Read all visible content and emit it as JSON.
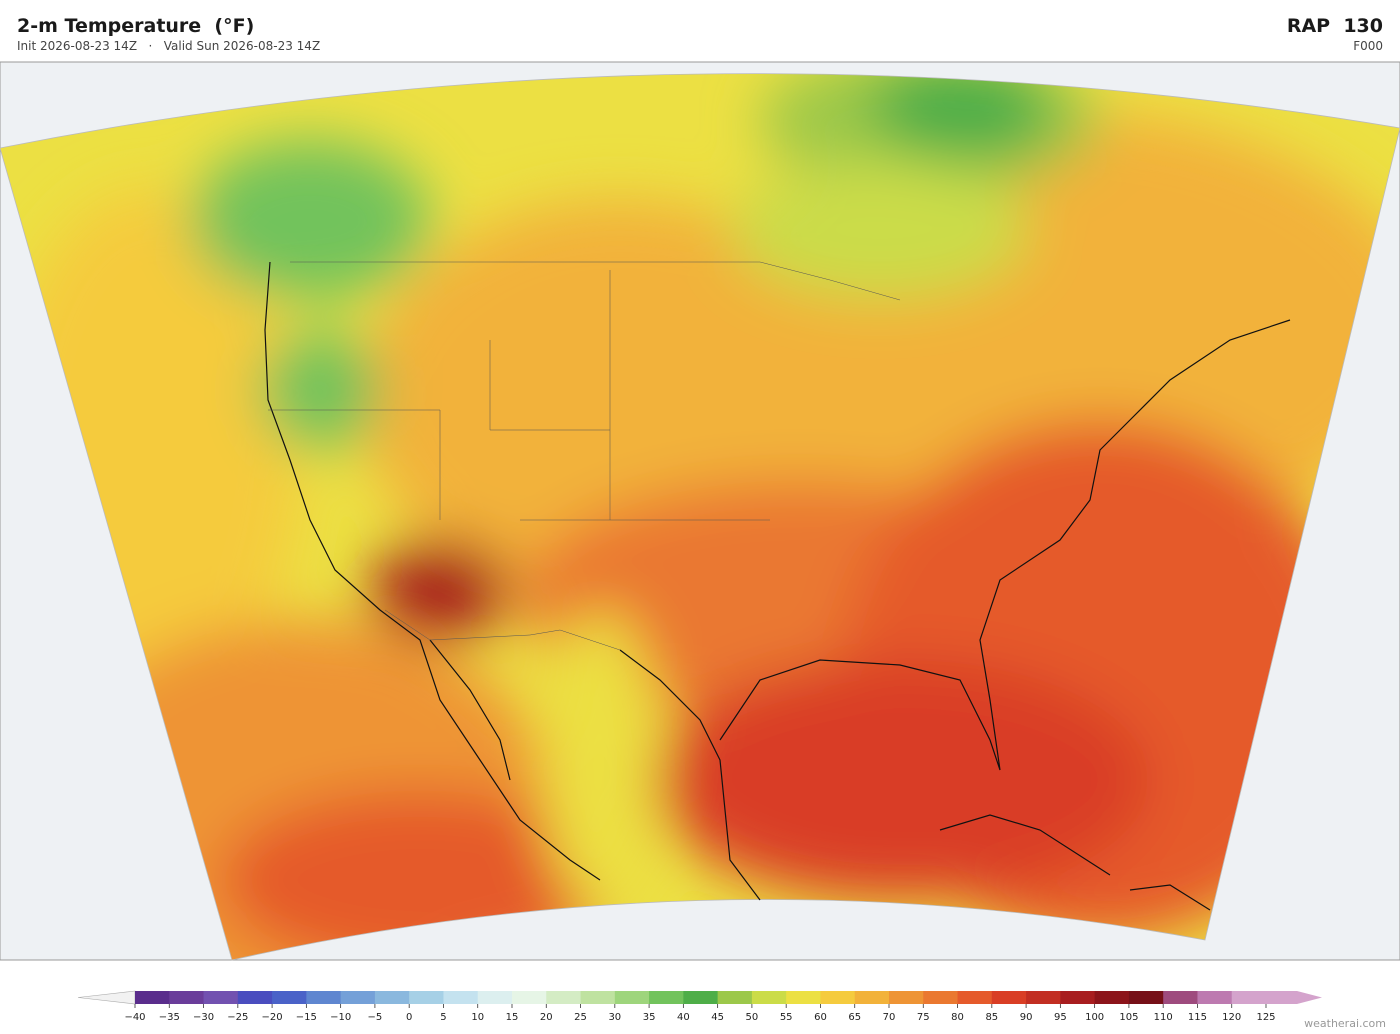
{
  "header": {
    "title": "2-m Temperature  (°F)",
    "subtitle": "Init 2026-08-23 14Z   ·   Valid Sun 2026-08-23 14Z",
    "model": "RAP  130",
    "forecast_hour": "F000"
  },
  "colorbar": {
    "lim": [
      -40,
      125
    ],
    "ticks": [
      {
        "value": -40,
        "label": "−40"
      },
      {
        "value": -35,
        "label": "−35"
      },
      {
        "value": -30,
        "label": "−30"
      },
      {
        "value": -25,
        "label": "−25"
      },
      {
        "value": -20,
        "label": "−20"
      },
      {
        "value": -15,
        "label": "−15"
      },
      {
        "value": -10,
        "label": "−10"
      },
      {
        "value": -5,
        "label": "−5"
      },
      0,
      5,
      10,
      15,
      20,
      25,
      30,
      35,
      40,
      45,
      50,
      55,
      60,
      65,
      70,
      75,
      80,
      85,
      90,
      95,
      100,
      105,
      110,
      115,
      120,
      125
    ],
    "colors": [
      "#5a2d8c",
      "#6a3d9a",
      "#7251b0",
      "#4a4dbf",
      "#4a62c8",
      "#5f86d0",
      "#74a0d8",
      "#8ab8de",
      "#a6d0e6",
      "#c4e2ef",
      "#dcefef",
      "#e6f5e6",
      "#d4ecc4",
      "#bfe2a0",
      "#9ed57c",
      "#72c35c",
      "#4eae48",
      "#9cc84a",
      "#cbdc48",
      "#ece043",
      "#f5cb3e",
      "#f2b23a",
      "#ee9435",
      "#ea7830",
      "#e55a2b",
      "#d93e25",
      "#c22e22",
      "#a81d1f",
      "#8c141a",
      "#761018",
      "#9e4b7e",
      "#bd7ab0",
      "#d4a3cc"
    ]
  },
  "watermark": "weatherai.com"
}
